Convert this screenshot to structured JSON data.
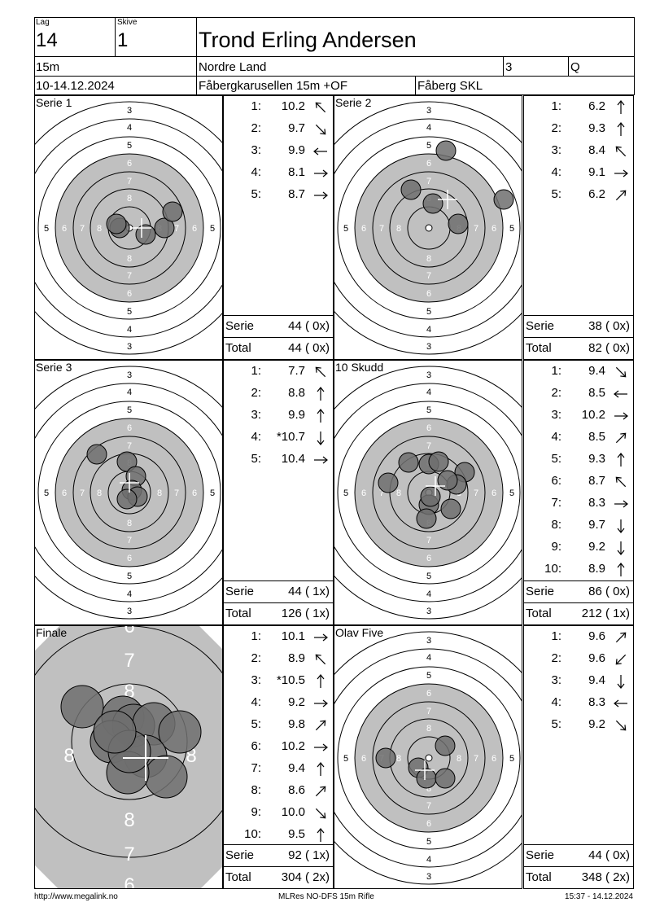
{
  "header": {
    "lag_label": "Lag",
    "lag_value": "14",
    "skive_label": "Skive",
    "skive_value": "1",
    "shooter_name": "Trond Erling Andersen",
    "distance": "15m",
    "club_region": "Nordre Land",
    "class_no": "3",
    "flag": "Q",
    "date": "10-14.12.2024",
    "event": "Fåbergkarusellen 15m +OF",
    "host_club": "Fåberg SKL"
  },
  "panels": [
    {
      "title": "Serie 1",
      "shots": [
        {
          "n": "1:",
          "v": "10.2",
          "dir": "up-left"
        },
        {
          "n": "2:",
          "v": "9.7",
          "dir": "down-right"
        },
        {
          "n": "3:",
          "v": "9.9",
          "dir": "left"
        },
        {
          "n": "4:",
          "v": "8.1",
          "dir": "right"
        },
        {
          "n": "5:",
          "v": "8.7",
          "dir": "right"
        }
      ],
      "serie_label": "Serie",
      "serie_value": "44 ( 0x)",
      "total_label": "Total",
      "total_value": "44 ( 0x)"
    },
    {
      "title": "Serie 2",
      "shots": [
        {
          "n": "1:",
          "v": "6.2",
          "dir": "up"
        },
        {
          "n": "2:",
          "v": "9.3",
          "dir": "up"
        },
        {
          "n": "3:",
          "v": "8.4",
          "dir": "up-left"
        },
        {
          "n": "4:",
          "v": "9.1",
          "dir": "right"
        },
        {
          "n": "5:",
          "v": "6.2",
          "dir": "up-right"
        }
      ],
      "serie_label": "Serie",
      "serie_value": "38 ( 0x)",
      "total_label": "Total",
      "total_value": "82 ( 0x)"
    },
    {
      "title": "Serie 3",
      "shots": [
        {
          "n": "1:",
          "v": "7.7",
          "dir": "up-left"
        },
        {
          "n": "2:",
          "v": "8.8",
          "dir": "up"
        },
        {
          "n": "3:",
          "v": "9.9",
          "dir": "up"
        },
        {
          "n": "4:",
          "v": "*10.7",
          "dir": "down"
        },
        {
          "n": "5:",
          "v": "10.4",
          "dir": "right"
        }
      ],
      "serie_label": "Serie",
      "serie_value": "44 ( 1x)",
      "total_label": "Total",
      "total_value": "126 ( 1x)"
    },
    {
      "title": "10 Skudd",
      "shots": [
        {
          "n": "1:",
          "v": "9.4",
          "dir": "down-right"
        },
        {
          "n": "2:",
          "v": "8.5",
          "dir": "left"
        },
        {
          "n": "3:",
          "v": "10.2",
          "dir": "right"
        },
        {
          "n": "4:",
          "v": "8.5",
          "dir": "up-right"
        },
        {
          "n": "5:",
          "v": "9.3",
          "dir": "up"
        },
        {
          "n": "6:",
          "v": "8.7",
          "dir": "up-left"
        },
        {
          "n": "7:",
          "v": "8.3",
          "dir": "right"
        },
        {
          "n": "8:",
          "v": "9.7",
          "dir": "down"
        },
        {
          "n": "9:",
          "v": "9.2",
          "dir": "down"
        },
        {
          "n": "10:",
          "v": "8.9",
          "dir": "up"
        }
      ],
      "serie_label": "Serie",
      "serie_value": "86 ( 0x)",
      "total_label": "Total",
      "total_value": "212 ( 1x)"
    },
    {
      "title": "Finale",
      "shots": [
        {
          "n": "1:",
          "v": "10.1",
          "dir": "right"
        },
        {
          "n": "2:",
          "v": "8.9",
          "dir": "up-left"
        },
        {
          "n": "3:",
          "v": "*10.5",
          "dir": "up"
        },
        {
          "n": "4:",
          "v": "9.2",
          "dir": "right"
        },
        {
          "n": "5:",
          "v": "9.8",
          "dir": "up-right"
        },
        {
          "n": "6:",
          "v": "10.2",
          "dir": "right"
        },
        {
          "n": "7:",
          "v": "9.4",
          "dir": "up"
        },
        {
          "n": "8:",
          "v": "8.6",
          "dir": "up-right"
        },
        {
          "n": "9:",
          "v": "10.0",
          "dir": "down-right"
        },
        {
          "n": "10:",
          "v": "9.5",
          "dir": "up"
        }
      ],
      "serie_label": "Serie",
      "serie_value": "92 ( 1x)",
      "total_label": "Total",
      "total_value": "304 ( 2x)"
    },
    {
      "title": "Olav Five",
      "shots": [
        {
          "n": "1:",
          "v": "9.6",
          "dir": "up-right"
        },
        {
          "n": "2:",
          "v": "9.6",
          "dir": "down-left"
        },
        {
          "n": "3:",
          "v": "9.4",
          "dir": "down"
        },
        {
          "n": "4:",
          "v": "8.3",
          "dir": "left"
        },
        {
          "n": "5:",
          "v": "9.2",
          "dir": "down-right"
        }
      ],
      "serie_label": "Serie",
      "serie_value": "44 ( 0x)",
      "total_label": "Total",
      "total_value": "348 ( 2x)"
    }
  ],
  "target": {
    "ring_numbers_vertical": [
      "3",
      "4",
      "5",
      "6",
      "7",
      "8"
    ],
    "ring_numbers_horizontal": [
      "5",
      "6",
      "7",
      "8"
    ],
    "zoomed_ring_numbers": [
      "6",
      "7",
      "8"
    ],
    "colors": {
      "aiming_mark": "#c0c0c0",
      "shot_fill": "#6e6e6e",
      "ring_line": "#000000",
      "center_white": "#ffffff"
    }
  },
  "footer": {
    "url": "http://www.megalink.no",
    "software": "MLRes NO-DFS 15m Rifle",
    "timestamp": "15:37 - 14.12.2024"
  }
}
